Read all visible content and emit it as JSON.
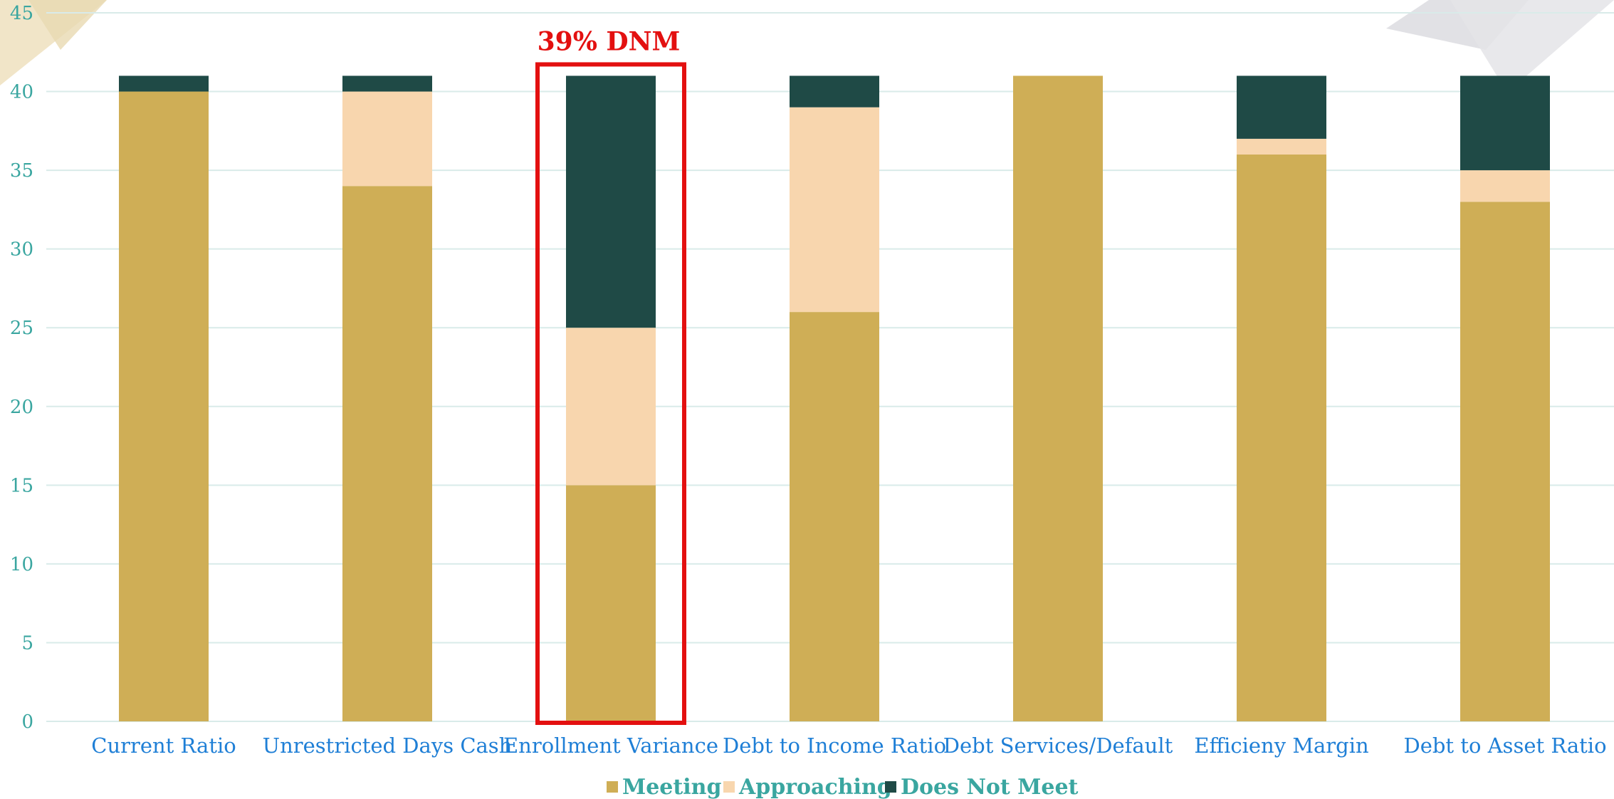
{
  "chart_data": {
    "type": "bar",
    "stacked": true,
    "title": "",
    "xlabel": "",
    "ylabel": "",
    "ylim": [
      0,
      45
    ],
    "yticks": [
      0,
      5,
      10,
      15,
      20,
      25,
      30,
      35,
      40,
      45
    ],
    "grid": true,
    "legend_position": "bottom",
    "categories": [
      "Current Ratio",
      "Unrestricted Days Cash",
      "Enrollment Variance",
      "Debt to Income Ratio",
      "Debt Services/Default",
      "Efficieny Margin",
      "Debt to Asset Ratio"
    ],
    "series": [
      {
        "name": "Meeting",
        "color": "#cfae56",
        "values": [
          40,
          34,
          15,
          26,
          41,
          36,
          33
        ]
      },
      {
        "name": "Approaching",
        "color": "#f8d6ae",
        "values": [
          0,
          6,
          10,
          13,
          0,
          1,
          2
        ]
      },
      {
        "name": "Does Not Meet",
        "color": "#1f4a46",
        "values": [
          1,
          1,
          16,
          2,
          0,
          4,
          6
        ]
      }
    ],
    "annotation": {
      "text": "39% DNM",
      "category": "Enrollment Variance",
      "color": "#e31010"
    }
  }
}
